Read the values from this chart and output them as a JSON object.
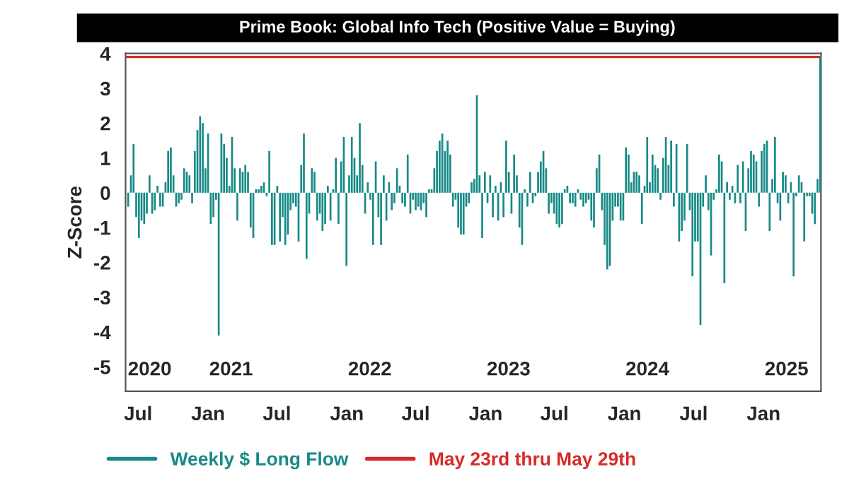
{
  "chart_data": {
    "type": "bar",
    "title": "Prime Book: Global Info Tech (Positive Value = Buying)",
    "ylabel": "Z-Score",
    "xlim": [
      "2020-05-29",
      "2025-06-01"
    ],
    "ylim": [
      -5.7,
      4
    ],
    "yticks": [
      -5,
      -4,
      -3,
      -2,
      -1,
      0,
      1,
      2,
      3,
      4
    ],
    "xticks": [
      {
        "value": "2020-07-01",
        "label": "Jul"
      },
      {
        "value": "2021-01-01",
        "label": "Jan"
      },
      {
        "value": "2021-07-01",
        "label": "Jul"
      },
      {
        "value": "2022-01-01",
        "label": "Jan"
      },
      {
        "value": "2022-07-01",
        "label": "Jul"
      },
      {
        "value": "2023-01-01",
        "label": "Jan"
      },
      {
        "value": "2023-07-01",
        "label": "Jul"
      },
      {
        "value": "2024-01-01",
        "label": "Jan"
      },
      {
        "value": "2024-07-01",
        "label": "Jul"
      },
      {
        "value": "2025-01-01",
        "label": "Jan"
      }
    ],
    "annotations": [
      "2020",
      "2021",
      "2022",
      "2023",
      "2024",
      "2025"
    ],
    "grid": false,
    "legend": "bottom",
    "series": [
      {
        "name": "Weekly $ Long Flow",
        "color": "#178a87",
        "x": [
          "2020-06-05",
          "2020-06-12",
          "2020-06-19",
          "2020-06-26",
          "2020-07-03",
          "2020-07-10",
          "2020-07-17",
          "2020-07-24",
          "2020-07-31",
          "2020-08-07",
          "2020-08-14",
          "2020-08-21",
          "2020-08-28",
          "2020-09-04",
          "2020-09-11",
          "2020-09-18",
          "2020-09-25",
          "2020-10-02",
          "2020-10-09",
          "2020-10-16",
          "2020-10-23",
          "2020-10-30",
          "2020-11-06",
          "2020-11-13",
          "2020-11-20",
          "2020-11-27",
          "2020-12-04",
          "2020-12-11",
          "2020-12-18",
          "2020-12-25",
          "2021-01-01",
          "2021-01-08",
          "2021-01-15",
          "2021-01-22",
          "2021-01-29",
          "2021-02-05",
          "2021-02-12",
          "2021-02-19",
          "2021-02-26",
          "2021-03-05",
          "2021-03-12",
          "2021-03-19",
          "2021-03-26",
          "2021-04-02",
          "2021-04-09",
          "2021-04-16",
          "2021-04-23",
          "2021-04-30",
          "2021-05-07",
          "2021-05-14",
          "2021-05-21",
          "2021-05-28",
          "2021-06-04",
          "2021-06-11",
          "2021-06-18",
          "2021-06-25",
          "2021-07-02",
          "2021-07-09",
          "2021-07-16",
          "2021-07-23",
          "2021-07-30",
          "2021-08-06",
          "2021-08-13",
          "2021-08-20",
          "2021-08-27",
          "2021-09-03",
          "2021-09-10",
          "2021-09-17",
          "2021-09-24",
          "2021-10-01",
          "2021-10-08",
          "2021-10-15",
          "2021-10-22",
          "2021-10-29",
          "2021-11-05",
          "2021-11-12",
          "2021-11-19",
          "2021-11-26",
          "2021-12-03",
          "2021-12-10",
          "2021-12-17",
          "2021-12-24",
          "2021-12-31",
          "2022-01-07",
          "2022-01-14",
          "2022-01-21",
          "2022-01-28",
          "2022-02-04",
          "2022-02-11",
          "2022-02-18",
          "2022-02-25",
          "2022-03-04",
          "2022-03-11",
          "2022-03-18",
          "2022-03-25",
          "2022-04-01",
          "2022-04-08",
          "2022-04-15",
          "2022-04-22",
          "2022-04-29",
          "2022-05-06",
          "2022-05-13",
          "2022-05-20",
          "2022-05-27",
          "2022-06-03",
          "2022-06-10",
          "2022-06-17",
          "2022-06-24",
          "2022-07-01",
          "2022-07-08",
          "2022-07-15",
          "2022-07-22",
          "2022-07-29",
          "2022-08-05",
          "2022-08-12",
          "2022-08-19",
          "2022-08-26",
          "2022-09-02",
          "2022-09-09",
          "2022-09-16",
          "2022-09-23",
          "2022-09-30",
          "2022-10-07",
          "2022-10-14",
          "2022-10-21",
          "2022-10-28",
          "2022-11-04",
          "2022-11-11",
          "2022-11-18",
          "2022-11-25",
          "2022-12-02",
          "2022-12-09",
          "2022-12-16",
          "2022-12-23",
          "2022-12-30",
          "2023-01-06",
          "2023-01-13",
          "2023-01-20",
          "2023-01-27",
          "2023-02-03",
          "2023-02-10",
          "2023-02-17",
          "2023-02-24",
          "2023-03-03",
          "2023-03-10",
          "2023-03-17",
          "2023-03-24",
          "2023-03-31",
          "2023-04-07",
          "2023-04-14",
          "2023-04-21",
          "2023-04-28",
          "2023-05-05",
          "2023-05-12",
          "2023-05-19",
          "2023-05-26",
          "2023-06-02",
          "2023-06-09",
          "2023-06-16",
          "2023-06-23",
          "2023-06-30",
          "2023-07-07",
          "2023-07-14",
          "2023-07-21",
          "2023-07-28",
          "2023-08-04",
          "2023-08-11",
          "2023-08-18",
          "2023-08-25",
          "2023-09-01",
          "2023-09-08",
          "2023-09-15",
          "2023-09-22",
          "2023-09-29",
          "2023-10-06",
          "2023-10-13",
          "2023-10-20",
          "2023-10-27",
          "2023-11-03",
          "2023-11-10",
          "2023-11-17",
          "2023-11-24",
          "2023-12-01",
          "2023-12-08",
          "2023-12-15",
          "2023-12-22",
          "2023-12-29",
          "2024-01-05",
          "2024-01-12",
          "2024-01-19",
          "2024-01-26",
          "2024-02-02",
          "2024-02-09",
          "2024-02-16",
          "2024-02-23",
          "2024-03-01",
          "2024-03-08",
          "2024-03-15",
          "2024-03-22",
          "2024-03-29",
          "2024-04-05",
          "2024-04-12",
          "2024-04-19",
          "2024-04-26",
          "2024-05-03",
          "2024-05-10",
          "2024-05-17",
          "2024-05-24",
          "2024-05-31",
          "2024-06-07",
          "2024-06-14",
          "2024-06-21",
          "2024-06-28",
          "2024-07-05",
          "2024-07-12",
          "2024-07-19",
          "2024-07-26",
          "2024-08-02",
          "2024-08-09",
          "2024-08-16",
          "2024-08-23",
          "2024-08-30",
          "2024-09-06",
          "2024-09-13",
          "2024-09-20",
          "2024-09-27",
          "2024-10-04",
          "2024-10-11",
          "2024-10-18",
          "2024-10-25",
          "2024-11-01",
          "2024-11-08",
          "2024-11-15",
          "2024-11-22",
          "2024-11-29",
          "2024-12-06",
          "2024-12-13",
          "2024-12-20",
          "2024-12-27",
          "2025-01-03",
          "2025-01-10",
          "2025-01-17",
          "2025-01-24",
          "2025-01-31",
          "2025-02-07",
          "2025-02-14",
          "2025-02-21",
          "2025-02-28",
          "2025-03-07",
          "2025-03-14",
          "2025-03-21",
          "2025-03-28",
          "2025-04-04",
          "2025-04-11",
          "2025-04-18",
          "2025-04-25",
          "2025-05-02",
          "2025-05-09",
          "2025-05-16",
          "2025-05-23",
          "2025-05-30"
        ],
        "values": [
          -0.4,
          0.5,
          1.4,
          -0.7,
          -1.3,
          -0.8,
          -0.9,
          -0.6,
          0.5,
          -0.6,
          -0.5,
          0.2,
          -0.4,
          -0.4,
          0.3,
          1.2,
          1.3,
          0.5,
          -0.4,
          -0.3,
          -0.2,
          0.7,
          0.6,
          0.5,
          -0.3,
          1.2,
          1.8,
          2.2,
          2.0,
          0.7,
          1.7,
          -0.9,
          -0.7,
          -0.2,
          -4.1,
          1.7,
          1.4,
          1.0,
          0.2,
          1.6,
          0.7,
          -0.8,
          0.7,
          0.6,
          0.8,
          0.6,
          -1.0,
          -1.3,
          0.1,
          0.1,
          0.2,
          0.3,
          -0.1,
          1.2,
          -1.5,
          -1.5,
          0.2,
          -1.4,
          -0.7,
          -1.5,
          -1.2,
          -0.5,
          -0.3,
          -0.4,
          -1.4,
          0.8,
          1.7,
          -1.9,
          -0.6,
          0.7,
          0.6,
          -0.8,
          -0.6,
          -1.1,
          -0.9,
          0.2,
          -0.8,
          0.1,
          1.0,
          -0.9,
          0.9,
          1.6,
          -2.1,
          0.5,
          1.6,
          1.0,
          0.5,
          2.0,
          0.8,
          -0.6,
          0.3,
          -0.2,
          -1.5,
          0.9,
          -0.7,
          -1.5,
          0.5,
          -0.8,
          0.3,
          -0.5,
          -0.3,
          0.7,
          0.2,
          -0.3,
          -0.4,
          1.1,
          -0.6,
          -0.2,
          -0.5,
          -0.4,
          -0.5,
          -0.3,
          -0.7,
          0.1,
          0.1,
          0.7,
          1.2,
          1.5,
          1.7,
          1.2,
          1.5,
          1.1,
          -0.4,
          -0.2,
          -1.0,
          -1.2,
          -1.2,
          -0.4,
          -0.3,
          0.3,
          0.4,
          2.8,
          0.5,
          -1.3,
          0.6,
          -0.3,
          0.5,
          -0.7,
          0.2,
          -0.8,
          0.3,
          -0.7,
          1.5,
          0.6,
          -0.6,
          1.1,
          0.5,
          -1.0,
          -1.5,
          0.1,
          -0.4,
          0.6,
          -0.3,
          -0.1,
          0.6,
          0.9,
          1.2,
          0.7,
          -0.6,
          -0.3,
          -0.6,
          -0.9,
          -1.0,
          -0.9,
          0.1,
          0.2,
          -0.3,
          -0.3,
          -0.4,
          0.1,
          -0.2,
          -0.4,
          -0.3,
          -0.2,
          -0.8,
          -1.0,
          0.7,
          1.1,
          -0.5,
          -1.5,
          -2.2,
          -2.1,
          -0.8,
          -0.4,
          -0.4,
          -0.8,
          -0.8,
          1.3,
          1.1,
          0.3,
          0.6,
          0.6,
          0.5,
          -0.9,
          0.2,
          1.6,
          0.3,
          1.1,
          0.8,
          0.7,
          -0.2,
          1.0,
          1.6,
          0.8,
          1.5,
          -0.4,
          1.4,
          -1.4,
          -1.1,
          -0.8,
          1.4,
          -0.5,
          -2.4,
          -1.4,
          -1.4,
          -3.8,
          -0.4,
          0.5,
          -0.5,
          -1.8,
          -0.2,
          0.1,
          1.1,
          0.9,
          -2.6,
          0.3,
          -0.2,
          0.2,
          -0.3,
          0.8,
          -0.3,
          0.9,
          -1.1,
          0.7,
          1.2,
          1.1,
          0.9,
          -0.4,
          1.2,
          1.4,
          1.5,
          -1.1,
          0.4,
          1.6,
          -0.3,
          -0.8,
          0.6,
          0.5,
          -0.3,
          0.3,
          -2.4,
          -0.1,
          0.5,
          0.3,
          -1.4,
          -0.1,
          -0.1,
          -0.6,
          -0.9,
          0.4,
          3.9
        ]
      },
      {
        "name": "May 23rd thru May 29th",
        "type": "line",
        "color": "#d62a2a",
        "line_style": "solid",
        "marker": "none",
        "x": [
          "2020-05-29",
          "2025-06-01"
        ],
        "values": [
          3.9,
          3.9
        ]
      }
    ]
  }
}
